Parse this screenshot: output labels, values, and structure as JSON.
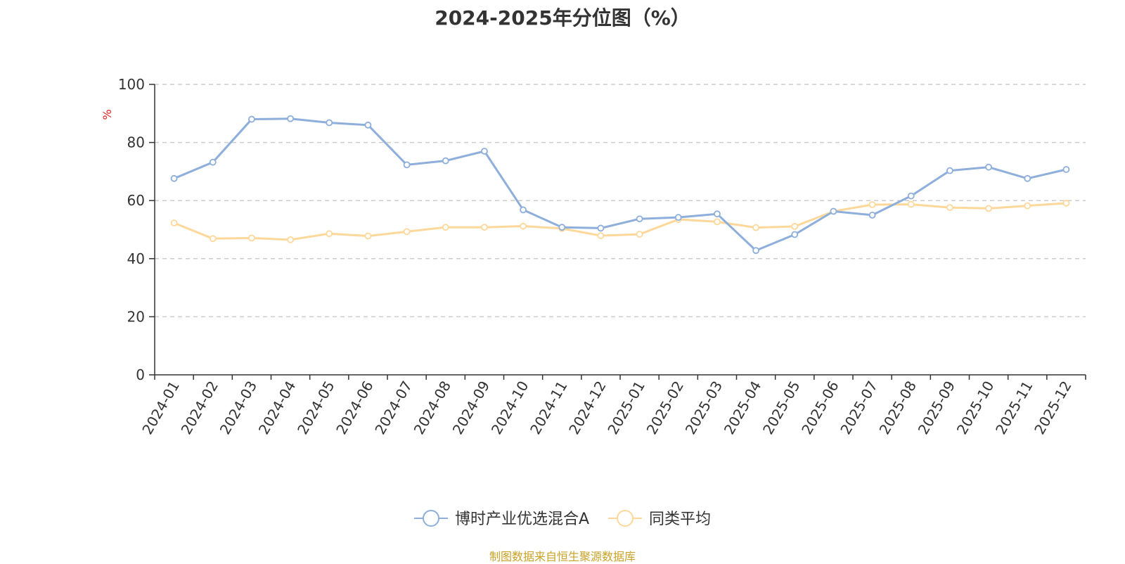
{
  "chart_data": {
    "type": "line",
    "title": "2024-2025年分位图（%）",
    "ylabel": "%",
    "ylim": [
      0,
      100
    ],
    "yticks": [
      0,
      20,
      40,
      60,
      80,
      100
    ],
    "grid": true,
    "legend_position": "bottom",
    "categories": [
      "2024-01",
      "2024-02",
      "2024-03",
      "2024-04",
      "2024-05",
      "2024-06",
      "2024-07",
      "2024-08",
      "2024-09",
      "2024-10",
      "2024-11",
      "2024-12",
      "2025-01",
      "2025-02",
      "2025-03",
      "2025-04",
      "2025-05",
      "2025-06",
      "2025-07",
      "2025-08",
      "2025-09",
      "2025-10",
      "2025-11",
      "2025-12"
    ],
    "series": [
      {
        "name": "博时产业优选混合A",
        "color": "#8eaedb",
        "values": [
          67.6,
          73.2,
          88.0,
          88.2,
          86.8,
          86.0,
          72.3,
          73.7,
          77.0,
          56.8,
          50.8,
          50.5,
          53.7,
          54.2,
          55.4,
          42.8,
          48.3,
          56.3,
          55.0,
          61.6,
          70.3,
          71.5,
          67.6,
          70.7
        ]
      },
      {
        "name": "同类平均",
        "color": "#fdd89a",
        "values": [
          52.3,
          46.9,
          47.1,
          46.5,
          48.6,
          47.8,
          49.3,
          50.8,
          50.8,
          51.2,
          50.4,
          47.9,
          48.4,
          53.5,
          52.7,
          50.7,
          51.1,
          56.3,
          58.6,
          58.7,
          57.6,
          57.3,
          58.2,
          59.1
        ]
      }
    ]
  },
  "source": {
    "text": "制图数据来自恒生聚源数据库",
    "color": "#c9a227"
  }
}
